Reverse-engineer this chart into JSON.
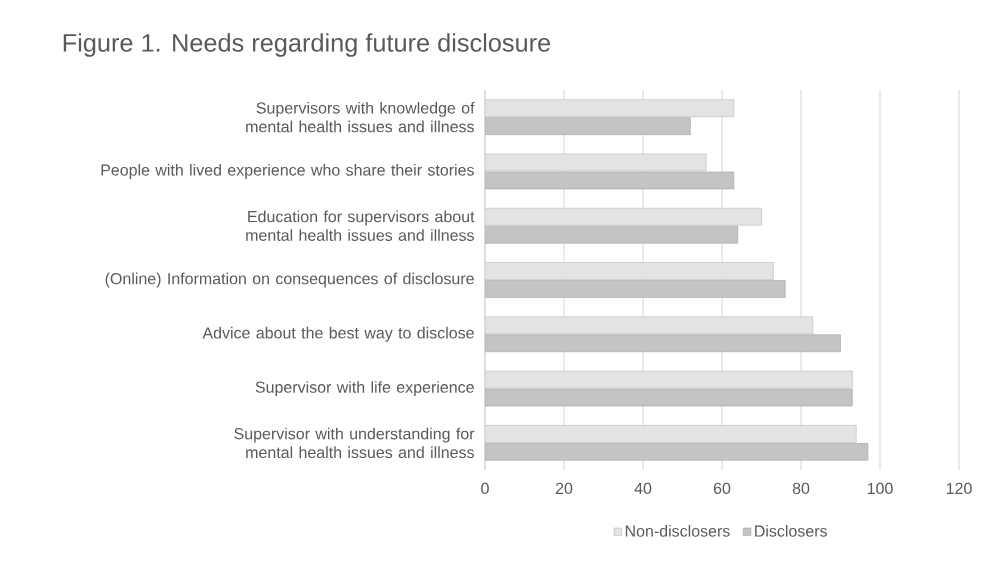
{
  "chart_data": {
    "type": "bar",
    "orientation": "horizontal",
    "title": "Figure 1. Needs regarding future disclosure",
    "categories": [
      "Supervisors with knowledge of mental health issues and illness",
      "People with lived experience who share their stories",
      "Education for supervisors about mental health issues and illness",
      "(Online) Information on consequences of disclosure",
      "Advice about the best way to disclose",
      "Supervisor with life experience",
      "Supervisor with understanding for mental health issues and illness"
    ],
    "series": [
      {
        "name": "Non-disclosers",
        "color": "#e3e3e3",
        "values": [
          63,
          56,
          70,
          73,
          83,
          93,
          94
        ]
      },
      {
        "name": "Disclosers",
        "color": "#c4c4c4",
        "values": [
          52,
          63,
          64,
          76,
          90,
          93,
          97
        ]
      }
    ],
    "xlim": [
      0,
      120
    ],
    "xticks": [
      0,
      20,
      40,
      60,
      80,
      100,
      120
    ],
    "grid": "x",
    "legend": "bottom"
  }
}
